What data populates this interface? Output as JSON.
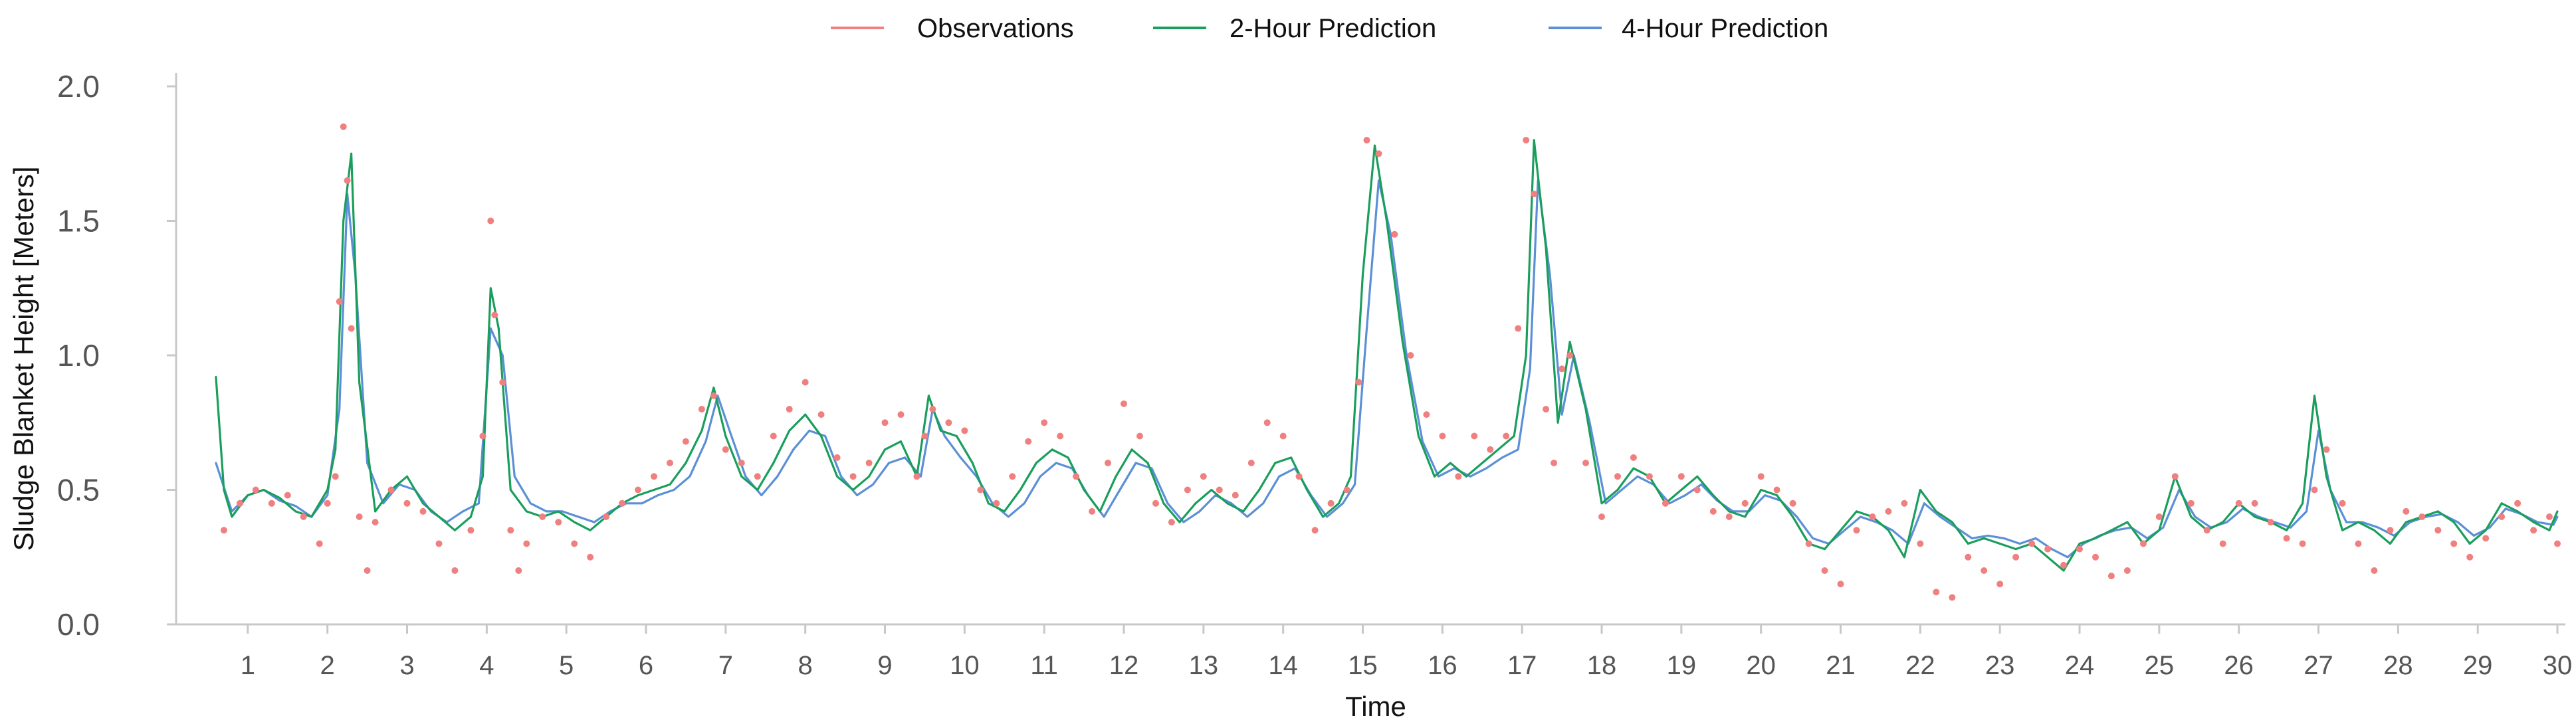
{
  "colors": {
    "observations": "#f08080",
    "pred2h": "#1a9e5c",
    "pred4h": "#5b8fd6",
    "axis": "#c8c8c8",
    "tick_label": "#555555",
    "axis_label": "#111111"
  },
  "chart_data": {
    "type": "line",
    "title": "",
    "xlabel": "Time",
    "ylabel": "Sludge Blanket Height [Meters]",
    "xlim": [
      0.1,
      30.1
    ],
    "ylim": [
      0.0,
      2.0
    ],
    "x_ticks": [
      1,
      2,
      3,
      4,
      5,
      6,
      7,
      8,
      9,
      10,
      11,
      12,
      13,
      14,
      15,
      16,
      17,
      18,
      19,
      20,
      21,
      22,
      23,
      24,
      25,
      26,
      27,
      28,
      29,
      30
    ],
    "x_tick_labels": [
      "1",
      "2",
      "3",
      "4",
      "5",
      "6",
      "7",
      "8",
      "9",
      "10",
      "11",
      "12",
      "13",
      "14",
      "15",
      "16",
      "17",
      "18",
      "19",
      "20",
      "21",
      "22",
      "23",
      "24",
      "25",
      "26",
      "27",
      "28",
      "29",
      "30"
    ],
    "y_ticks": [
      0.0,
      0.5,
      1.0,
      1.5,
      2.0
    ],
    "y_tick_labels": [
      "0.0",
      "0.5",
      "1.0",
      "1.5",
      "2.0"
    ],
    "grid": false,
    "legend_position": "top-center",
    "series": [
      {
        "name": "Observations",
        "style": "markers",
        "x": [
          0.7,
          0.9,
          1.1,
          1.3,
          1.5,
          1.7,
          1.9,
          2.0,
          2.1,
          2.15,
          2.2,
          2.25,
          2.3,
          2.4,
          2.5,
          2.6,
          2.8,
          3.0,
          3.2,
          3.4,
          3.6,
          3.8,
          3.95,
          4.05,
          4.1,
          4.2,
          4.3,
          4.4,
          4.5,
          4.7,
          4.9,
          5.1,
          5.3,
          5.5,
          5.7,
          5.9,
          6.1,
          6.3,
          6.5,
          6.7,
          6.85,
          7.0,
          7.2,
          7.4,
          7.6,
          7.8,
          8.0,
          8.2,
          8.4,
          8.6,
          8.8,
          9.0,
          9.2,
          9.4,
          9.5,
          9.6,
          9.8,
          10.0,
          10.2,
          10.4,
          10.6,
          10.8,
          11.0,
          11.2,
          11.4,
          11.6,
          11.8,
          12.0,
          12.2,
          12.4,
          12.6,
          12.8,
          13.0,
          13.2,
          13.4,
          13.6,
          13.8,
          14.0,
          14.2,
          14.4,
          14.6,
          14.8,
          14.95,
          15.05,
          15.2,
          15.4,
          15.6,
          15.8,
          16.0,
          16.2,
          16.4,
          16.6,
          16.8,
          16.95,
          17.05,
          17.15,
          17.3,
          17.4,
          17.5,
          17.6,
          17.8,
          18.0,
          18.2,
          18.4,
          18.6,
          18.8,
          19.0,
          19.2,
          19.4,
          19.6,
          19.8,
          20.0,
          20.2,
          20.4,
          20.6,
          20.8,
          21.0,
          21.2,
          21.4,
          21.6,
          21.8,
          22.0,
          22.2,
          22.4,
          22.6,
          22.8,
          23.0,
          23.2,
          23.4,
          23.6,
          23.8,
          24.0,
          24.2,
          24.4,
          24.6,
          24.8,
          25.0,
          25.2,
          25.4,
          25.6,
          25.8,
          26.0,
          26.2,
          26.4,
          26.6,
          26.8,
          26.95,
          27.1,
          27.3,
          27.5,
          27.7,
          27.9,
          28.1,
          28.3,
          28.5,
          28.7,
          28.9,
          29.1,
          29.3,
          29.5,
          29.7,
          29.9,
          30.0
        ],
        "values": [
          0.35,
          0.45,
          0.5,
          0.45,
          0.48,
          0.4,
          0.3,
          0.45,
          0.55,
          1.2,
          1.85,
          1.65,
          1.1,
          0.4,
          0.2,
          0.38,
          0.5,
          0.45,
          0.42,
          0.3,
          0.2,
          0.35,
          0.7,
          1.5,
          1.15,
          0.9,
          0.35,
          0.2,
          0.3,
          0.4,
          0.38,
          0.3,
          0.25,
          0.4,
          0.45,
          0.5,
          0.55,
          0.6,
          0.68,
          0.8,
          0.85,
          0.65,
          0.6,
          0.55,
          0.7,
          0.8,
          0.9,
          0.78,
          0.62,
          0.55,
          0.6,
          0.75,
          0.78,
          0.55,
          0.7,
          0.8,
          0.75,
          0.72,
          0.5,
          0.45,
          0.55,
          0.68,
          0.75,
          0.7,
          0.55,
          0.42,
          0.6,
          0.82,
          0.7,
          0.45,
          0.38,
          0.5,
          0.55,
          0.5,
          0.48,
          0.6,
          0.75,
          0.7,
          0.55,
          0.35,
          0.45,
          0.5,
          0.9,
          1.8,
          1.75,
          1.45,
          1.0,
          0.78,
          0.7,
          0.55,
          0.7,
          0.65,
          0.7,
          1.1,
          1.8,
          1.6,
          0.8,
          0.6,
          0.95,
          1.0,
          0.6,
          0.4,
          0.55,
          0.62,
          0.55,
          0.45,
          0.55,
          0.5,
          0.42,
          0.4,
          0.45,
          0.55,
          0.5,
          0.45,
          0.3,
          0.2,
          0.15,
          0.35,
          0.4,
          0.42,
          0.45,
          0.3,
          0.12,
          0.1,
          0.25,
          0.2,
          0.15,
          0.25,
          0.3,
          0.28,
          0.22,
          0.28,
          0.25,
          0.18,
          0.2,
          0.3,
          0.4,
          0.55,
          0.45,
          0.35,
          0.3,
          0.45,
          0.45,
          0.38,
          0.32,
          0.3,
          0.5,
          0.65,
          0.45,
          0.3,
          0.2,
          0.35,
          0.42,
          0.4,
          0.35,
          0.3,
          0.25,
          0.32,
          0.4,
          0.45,
          0.35,
          0.4,
          0.3
        ]
      },
      {
        "name": "2-Hour Prediction",
        "style": "line",
        "x": [
          0.6,
          0.7,
          0.8,
          1.0,
          1.2,
          1.4,
          1.6,
          1.8,
          2.0,
          2.1,
          2.2,
          2.3,
          2.4,
          2.6,
          2.8,
          3.0,
          3.2,
          3.4,
          3.6,
          3.8,
          3.95,
          4.05,
          4.15,
          4.3,
          4.5,
          4.7,
          4.9,
          5.1,
          5.3,
          5.5,
          5.7,
          5.9,
          6.1,
          6.3,
          6.5,
          6.7,
          6.85,
          7.0,
          7.2,
          7.4,
          7.6,
          7.8,
          8.0,
          8.2,
          8.4,
          8.6,
          8.8,
          9.0,
          9.2,
          9.4,
          9.55,
          9.7,
          9.9,
          10.1,
          10.3,
          10.5,
          10.7,
          10.9,
          11.1,
          11.3,
          11.5,
          11.7,
          11.9,
          12.1,
          12.3,
          12.5,
          12.7,
          12.9,
          13.1,
          13.3,
          13.5,
          13.7,
          13.9,
          14.1,
          14.3,
          14.5,
          14.7,
          14.85,
          15.0,
          15.15,
          15.3,
          15.5,
          15.7,
          15.9,
          16.1,
          16.3,
          16.5,
          16.7,
          16.9,
          17.05,
          17.15,
          17.3,
          17.45,
          17.6,
          17.8,
          18.0,
          18.2,
          18.4,
          18.6,
          18.8,
          19.0,
          19.2,
          19.4,
          19.6,
          19.8,
          20.0,
          20.2,
          20.4,
          20.6,
          20.8,
          21.0,
          21.2,
          21.4,
          21.6,
          21.8,
          22.0,
          22.2,
          22.4,
          22.6,
          22.8,
          23.0,
          23.2,
          23.4,
          23.6,
          23.8,
          24.0,
          24.2,
          24.4,
          24.6,
          24.8,
          25.0,
          25.2,
          25.4,
          25.6,
          25.8,
          26.0,
          26.2,
          26.4,
          26.6,
          26.8,
          26.95,
          27.1,
          27.3,
          27.5,
          27.7,
          27.9,
          28.1,
          28.3,
          28.5,
          28.7,
          28.9,
          29.1,
          29.3,
          29.5,
          29.7,
          29.9,
          30.0
        ],
        "values": [
          0.92,
          0.5,
          0.4,
          0.48,
          0.5,
          0.47,
          0.42,
          0.4,
          0.5,
          0.65,
          1.5,
          1.75,
          0.9,
          0.42,
          0.5,
          0.55,
          0.45,
          0.4,
          0.35,
          0.4,
          0.55,
          1.25,
          1.1,
          0.5,
          0.42,
          0.4,
          0.42,
          0.38,
          0.35,
          0.4,
          0.45,
          0.48,
          0.5,
          0.52,
          0.6,
          0.72,
          0.88,
          0.7,
          0.55,
          0.5,
          0.6,
          0.72,
          0.78,
          0.7,
          0.55,
          0.5,
          0.55,
          0.65,
          0.68,
          0.55,
          0.85,
          0.72,
          0.7,
          0.6,
          0.45,
          0.42,
          0.5,
          0.6,
          0.65,
          0.62,
          0.5,
          0.42,
          0.55,
          0.65,
          0.6,
          0.45,
          0.38,
          0.45,
          0.5,
          0.45,
          0.42,
          0.5,
          0.6,
          0.62,
          0.5,
          0.4,
          0.45,
          0.55,
          1.3,
          1.78,
          1.5,
          1.05,
          0.7,
          0.55,
          0.6,
          0.55,
          0.6,
          0.65,
          0.7,
          1.0,
          1.8,
          1.4,
          0.75,
          1.05,
          0.8,
          0.45,
          0.5,
          0.58,
          0.55,
          0.45,
          0.5,
          0.55,
          0.48,
          0.42,
          0.4,
          0.5,
          0.48,
          0.4,
          0.3,
          0.28,
          0.35,
          0.42,
          0.4,
          0.35,
          0.25,
          0.5,
          0.42,
          0.38,
          0.3,
          0.32,
          0.3,
          0.28,
          0.3,
          0.25,
          0.2,
          0.3,
          0.32,
          0.35,
          0.38,
          0.3,
          0.35,
          0.55,
          0.4,
          0.35,
          0.38,
          0.45,
          0.4,
          0.38,
          0.35,
          0.45,
          0.85,
          0.55,
          0.35,
          0.38,
          0.35,
          0.3,
          0.38,
          0.4,
          0.42,
          0.38,
          0.3,
          0.35,
          0.45,
          0.42,
          0.38,
          0.35,
          0.42
        ]
      },
      {
        "name": "4-Hour Prediction",
        "style": "line",
        "x": [
          0.6,
          0.8,
          1.0,
          1.2,
          1.4,
          1.6,
          1.8,
          2.0,
          2.15,
          2.25,
          2.35,
          2.5,
          2.7,
          2.9,
          3.1,
          3.3,
          3.5,
          3.7,
          3.9,
          4.05,
          4.2,
          4.35,
          4.55,
          4.75,
          4.95,
          5.15,
          5.35,
          5.55,
          5.75,
          5.95,
          6.15,
          6.35,
          6.55,
          6.75,
          6.9,
          7.05,
          7.25,
          7.45,
          7.65,
          7.85,
          8.05,
          8.25,
          8.45,
          8.65,
          8.85,
          9.05,
          9.25,
          9.45,
          9.6,
          9.75,
          9.95,
          10.15,
          10.35,
          10.55,
          10.75,
          10.95,
          11.15,
          11.35,
          11.55,
          11.75,
          11.95,
          12.15,
          12.35,
          12.55,
          12.75,
          12.95,
          13.15,
          13.35,
          13.55,
          13.75,
          13.95,
          14.15,
          14.35,
          14.55,
          14.75,
          14.9,
          15.05,
          15.2,
          15.35,
          15.55,
          15.75,
          15.95,
          16.15,
          16.35,
          16.55,
          16.75,
          16.95,
          17.1,
          17.2,
          17.35,
          17.5,
          17.65,
          17.85,
          18.05,
          18.25,
          18.45,
          18.65,
          18.85,
          19.05,
          19.25,
          19.45,
          19.65,
          19.85,
          20.05,
          20.25,
          20.45,
          20.65,
          20.85,
          21.05,
          21.25,
          21.45,
          21.65,
          21.85,
          22.05,
          22.25,
          22.45,
          22.65,
          22.85,
          23.05,
          23.25,
          23.45,
          23.65,
          23.85,
          24.05,
          24.25,
          24.45,
          24.65,
          24.85,
          25.05,
          25.25,
          25.45,
          25.65,
          25.85,
          26.05,
          26.25,
          26.45,
          26.65,
          26.85,
          27.0,
          27.15,
          27.35,
          27.55,
          27.75,
          27.95,
          28.15,
          28.35,
          28.55,
          28.75,
          28.95,
          29.15,
          29.35,
          29.55,
          29.75,
          29.95,
          30.0
        ],
        "values": [
          0.6,
          0.42,
          0.48,
          0.5,
          0.46,
          0.44,
          0.4,
          0.48,
          0.8,
          1.6,
          1.3,
          0.6,
          0.45,
          0.52,
          0.5,
          0.42,
          0.38,
          0.42,
          0.45,
          1.1,
          1.0,
          0.55,
          0.45,
          0.42,
          0.42,
          0.4,
          0.38,
          0.42,
          0.45,
          0.45,
          0.48,
          0.5,
          0.55,
          0.68,
          0.85,
          0.72,
          0.55,
          0.48,
          0.55,
          0.65,
          0.72,
          0.7,
          0.55,
          0.48,
          0.52,
          0.6,
          0.62,
          0.55,
          0.8,
          0.7,
          0.62,
          0.55,
          0.45,
          0.4,
          0.45,
          0.55,
          0.6,
          0.58,
          0.48,
          0.4,
          0.5,
          0.6,
          0.58,
          0.45,
          0.38,
          0.42,
          0.48,
          0.45,
          0.4,
          0.45,
          0.55,
          0.58,
          0.48,
          0.4,
          0.45,
          0.52,
          1.1,
          1.65,
          1.45,
          1.0,
          0.68,
          0.55,
          0.58,
          0.55,
          0.58,
          0.62,
          0.65,
          0.95,
          1.65,
          1.3,
          0.78,
          1.0,
          0.75,
          0.45,
          0.5,
          0.55,
          0.52,
          0.45,
          0.48,
          0.52,
          0.46,
          0.42,
          0.42,
          0.48,
          0.46,
          0.4,
          0.32,
          0.3,
          0.35,
          0.4,
          0.38,
          0.35,
          0.3,
          0.45,
          0.4,
          0.36,
          0.32,
          0.33,
          0.32,
          0.3,
          0.32,
          0.28,
          0.25,
          0.3,
          0.33,
          0.35,
          0.36,
          0.32,
          0.36,
          0.5,
          0.4,
          0.36,
          0.38,
          0.43,
          0.4,
          0.38,
          0.36,
          0.42,
          0.72,
          0.5,
          0.38,
          0.38,
          0.36,
          0.33,
          0.38,
          0.4,
          0.41,
          0.38,
          0.33,
          0.36,
          0.43,
          0.41,
          0.38,
          0.37,
          0.4
        ]
      }
    ]
  }
}
